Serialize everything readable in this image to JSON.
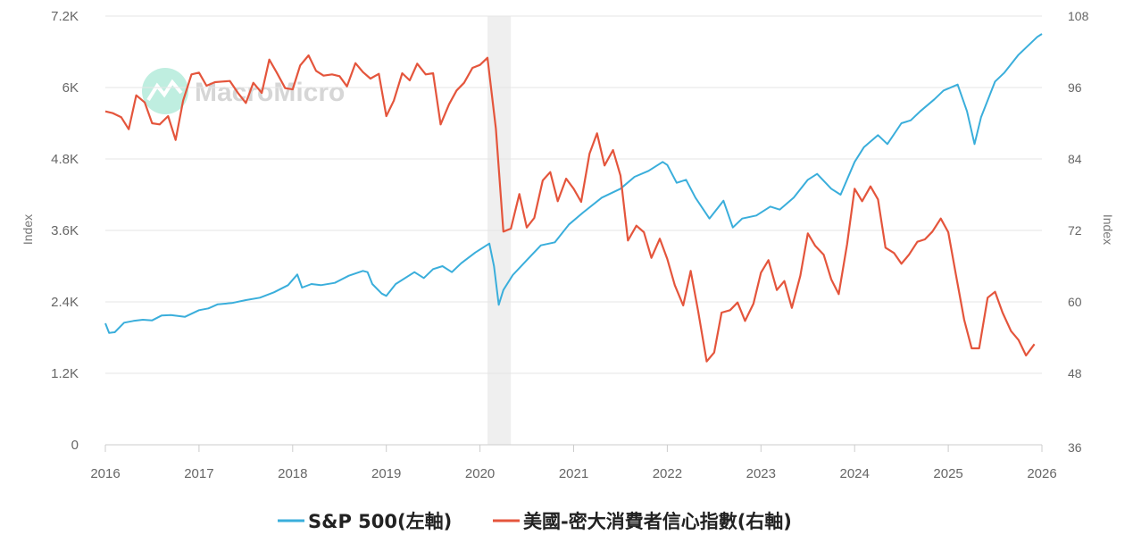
{
  "chart_data": {
    "type": "line",
    "watermark": "MacroMicro",
    "left_axis": {
      "title": "Index",
      "ticks": [
        "0",
        "1.2K",
        "2.4K",
        "3.6K",
        "4.8K",
        "6K",
        "7.2K"
      ],
      "range": [
        0,
        7200
      ]
    },
    "right_axis": {
      "title": "Index",
      "ticks": [
        "36",
        "48",
        "60",
        "72",
        "84",
        "96",
        "108"
      ],
      "range": [
        36,
        108
      ]
    },
    "x_axis": {
      "ticks": [
        "2016",
        "2017",
        "2018",
        "2019",
        "2020",
        "2021",
        "2022",
        "2023",
        "2024",
        "2025",
        "2026"
      ],
      "range": [
        2016,
        2026
      ]
    },
    "recession_band": [
      2020.08,
      2020.33
    ],
    "colors": {
      "sp500": "#3aaedb",
      "sentiment": "#e4553c",
      "band": "#efefef",
      "grid": "#e6e6e6"
    },
    "series": [
      {
        "name": "S&P 500(左軸)",
        "axis": "left",
        "points": [
          [
            2016.0,
            2040
          ],
          [
            2016.04,
            1880
          ],
          [
            2016.1,
            1890
          ],
          [
            2016.2,
            2050
          ],
          [
            2016.3,
            2080
          ],
          [
            2016.4,
            2100
          ],
          [
            2016.5,
            2090
          ],
          [
            2016.6,
            2170
          ],
          [
            2016.7,
            2180
          ],
          [
            2016.85,
            2150
          ],
          [
            2017.0,
            2260
          ],
          [
            2017.1,
            2290
          ],
          [
            2017.2,
            2360
          ],
          [
            2017.35,
            2380
          ],
          [
            2017.5,
            2430
          ],
          [
            2017.65,
            2470
          ],
          [
            2017.8,
            2560
          ],
          [
            2017.95,
            2680
          ],
          [
            2018.05,
            2860
          ],
          [
            2018.1,
            2640
          ],
          [
            2018.2,
            2700
          ],
          [
            2018.3,
            2680
          ],
          [
            2018.45,
            2720
          ],
          [
            2018.6,
            2840
          ],
          [
            2018.75,
            2920
          ],
          [
            2018.8,
            2900
          ],
          [
            2018.85,
            2700
          ],
          [
            2018.95,
            2540
          ],
          [
            2019.0,
            2500
          ],
          [
            2019.1,
            2700
          ],
          [
            2019.3,
            2900
          ],
          [
            2019.4,
            2800
          ],
          [
            2019.5,
            2950
          ],
          [
            2019.6,
            3000
          ],
          [
            2019.7,
            2900
          ],
          [
            2019.8,
            3050
          ],
          [
            2019.95,
            3230
          ],
          [
            2020.1,
            3380
          ],
          [
            2020.15,
            3000
          ],
          [
            2020.2,
            2350
          ],
          [
            2020.25,
            2600
          ],
          [
            2020.35,
            2850
          ],
          [
            2020.5,
            3100
          ],
          [
            2020.65,
            3350
          ],
          [
            2020.8,
            3400
          ],
          [
            2020.95,
            3700
          ],
          [
            2021.1,
            3900
          ],
          [
            2021.3,
            4150
          ],
          [
            2021.5,
            4300
          ],
          [
            2021.65,
            4500
          ],
          [
            2021.8,
            4600
          ],
          [
            2021.95,
            4750
          ],
          [
            2022.0,
            4700
          ],
          [
            2022.1,
            4400
          ],
          [
            2022.2,
            4450
          ],
          [
            2022.3,
            4150
          ],
          [
            2022.45,
            3800
          ],
          [
            2022.6,
            4100
          ],
          [
            2022.7,
            3650
          ],
          [
            2022.8,
            3800
          ],
          [
            2022.95,
            3850
          ],
          [
            2023.1,
            4000
          ],
          [
            2023.2,
            3950
          ],
          [
            2023.35,
            4150
          ],
          [
            2023.5,
            4450
          ],
          [
            2023.6,
            4550
          ],
          [
            2023.75,
            4300
          ],
          [
            2023.85,
            4200
          ],
          [
            2024.0,
            4750
          ],
          [
            2024.1,
            5000
          ],
          [
            2024.25,
            5200
          ],
          [
            2024.35,
            5050
          ],
          [
            2024.5,
            5400
          ],
          [
            2024.6,
            5450
          ],
          [
            2024.7,
            5600
          ],
          [
            2024.85,
            5800
          ],
          [
            2024.95,
            5950
          ],
          [
            2025.1,
            6050
          ],
          [
            2025.2,
            5600
          ],
          [
            2025.28,
            5050
          ],
          [
            2025.35,
            5500
          ],
          [
            2025.5,
            6100
          ],
          [
            2025.6,
            6250
          ],
          [
            2025.75,
            6550
          ],
          [
            2025.85,
            6700
          ],
          [
            2025.95,
            6850
          ],
          [
            2026.0,
            6900
          ]
        ]
      },
      {
        "name": "美國-密大消費者信心指數(右軸)",
        "axis": "right",
        "points": [
          [
            2016.0,
            92.0
          ],
          [
            2016.08,
            91.7
          ],
          [
            2016.17,
            91.0
          ],
          [
            2016.25,
            89.0
          ],
          [
            2016.33,
            94.7
          ],
          [
            2016.42,
            93.5
          ],
          [
            2016.5,
            90.0
          ],
          [
            2016.58,
            89.8
          ],
          [
            2016.67,
            91.2
          ],
          [
            2016.75,
            87.2
          ],
          [
            2016.83,
            93.8
          ],
          [
            2016.92,
            98.2
          ],
          [
            2017.0,
            98.5
          ],
          [
            2017.08,
            96.3
          ],
          [
            2017.17,
            96.9
          ],
          [
            2017.25,
            97.0
          ],
          [
            2017.33,
            97.1
          ],
          [
            2017.42,
            95.0
          ],
          [
            2017.5,
            93.4
          ],
          [
            2017.58,
            96.8
          ],
          [
            2017.67,
            95.1
          ],
          [
            2017.75,
            100.7
          ],
          [
            2017.83,
            98.5
          ],
          [
            2017.92,
            95.9
          ],
          [
            2018.0,
            95.7
          ],
          [
            2018.08,
            99.7
          ],
          [
            2018.17,
            101.4
          ],
          [
            2018.25,
            98.8
          ],
          [
            2018.33,
            98.0
          ],
          [
            2018.42,
            98.2
          ],
          [
            2018.5,
            97.9
          ],
          [
            2018.58,
            96.2
          ],
          [
            2018.67,
            100.1
          ],
          [
            2018.75,
            98.6
          ],
          [
            2018.83,
            97.5
          ],
          [
            2018.92,
            98.3
          ],
          [
            2019.0,
            91.2
          ],
          [
            2019.08,
            93.8
          ],
          [
            2019.17,
            98.4
          ],
          [
            2019.25,
            97.2
          ],
          [
            2019.33,
            100.0
          ],
          [
            2019.42,
            98.2
          ],
          [
            2019.5,
            98.4
          ],
          [
            2019.58,
            89.8
          ],
          [
            2019.67,
            93.2
          ],
          [
            2019.75,
            95.5
          ],
          [
            2019.83,
            96.8
          ],
          [
            2019.92,
            99.3
          ],
          [
            2020.0,
            99.8
          ],
          [
            2020.08,
            101.0
          ],
          [
            2020.17,
            89.1
          ],
          [
            2020.25,
            71.8
          ],
          [
            2020.33,
            72.3
          ],
          [
            2020.42,
            78.1
          ],
          [
            2020.5,
            72.5
          ],
          [
            2020.58,
            74.1
          ],
          [
            2020.67,
            80.4
          ],
          [
            2020.75,
            81.8
          ],
          [
            2020.83,
            76.9
          ],
          [
            2020.92,
            80.7
          ],
          [
            2021.0,
            79.0
          ],
          [
            2021.08,
            76.8
          ],
          [
            2021.17,
            84.9
          ],
          [
            2021.25,
            88.3
          ],
          [
            2021.33,
            82.9
          ],
          [
            2021.42,
            85.5
          ],
          [
            2021.5,
            81.2
          ],
          [
            2021.58,
            70.3
          ],
          [
            2021.67,
            72.8
          ],
          [
            2021.75,
            71.7
          ],
          [
            2021.83,
            67.4
          ],
          [
            2021.92,
            70.6
          ],
          [
            2022.0,
            67.2
          ],
          [
            2022.08,
            62.8
          ],
          [
            2022.17,
            59.4
          ],
          [
            2022.25,
            65.2
          ],
          [
            2022.33,
            58.4
          ],
          [
            2022.42,
            50.0
          ],
          [
            2022.5,
            51.5
          ],
          [
            2022.58,
            58.2
          ],
          [
            2022.67,
            58.6
          ],
          [
            2022.75,
            59.9
          ],
          [
            2022.83,
            56.8
          ],
          [
            2022.92,
            59.7
          ],
          [
            2023.0,
            64.9
          ],
          [
            2023.08,
            67.0
          ],
          [
            2023.17,
            62.0
          ],
          [
            2023.25,
            63.5
          ],
          [
            2023.33,
            59.0
          ],
          [
            2023.42,
            64.4
          ],
          [
            2023.5,
            71.5
          ],
          [
            2023.58,
            69.4
          ],
          [
            2023.67,
            67.9
          ],
          [
            2023.75,
            63.8
          ],
          [
            2023.83,
            61.3
          ],
          [
            2023.92,
            69.7
          ],
          [
            2024.0,
            79.0
          ],
          [
            2024.08,
            76.9
          ],
          [
            2024.17,
            79.4
          ],
          [
            2024.25,
            77.2
          ],
          [
            2024.33,
            69.1
          ],
          [
            2024.42,
            68.2
          ],
          [
            2024.5,
            66.4
          ],
          [
            2024.58,
            67.9
          ],
          [
            2024.67,
            70.1
          ],
          [
            2024.75,
            70.5
          ],
          [
            2024.83,
            71.8
          ],
          [
            2024.92,
            74.0
          ],
          [
            2025.0,
            71.7
          ],
          [
            2025.08,
            64.7
          ],
          [
            2025.17,
            57.0
          ],
          [
            2025.25,
            52.2
          ],
          [
            2025.33,
            52.2
          ],
          [
            2025.42,
            60.7
          ],
          [
            2025.5,
            61.7
          ],
          [
            2025.58,
            58.2
          ],
          [
            2025.67,
            55.1
          ],
          [
            2025.75,
            53.6
          ],
          [
            2025.83,
            51.0
          ],
          [
            2025.92,
            52.9
          ]
        ]
      }
    ]
  }
}
